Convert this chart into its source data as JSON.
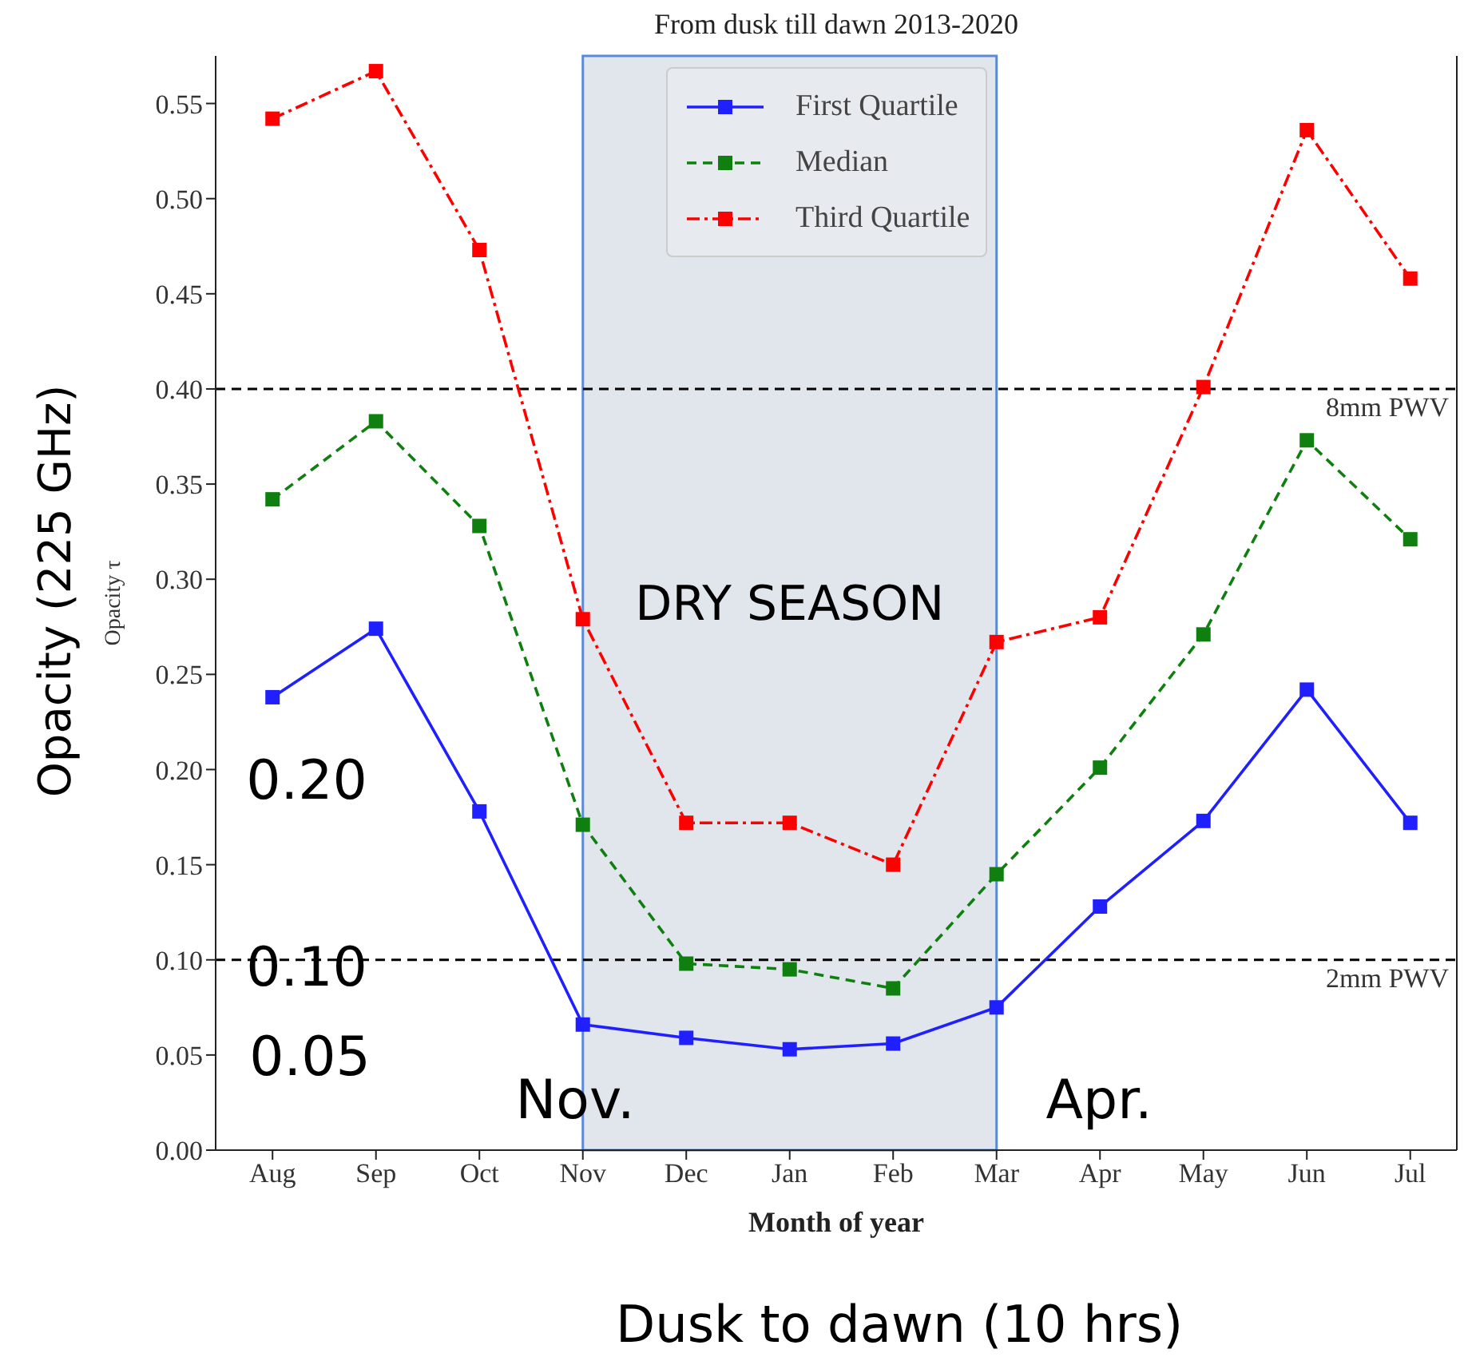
{
  "chart_data": {
    "type": "line",
    "title": "From dusk till dawn 2013-2020",
    "xlabel": "Month of year",
    "ylabel": "Opacity τ",
    "categories": [
      "Aug",
      "Sep",
      "Oct",
      "Nov",
      "Dec",
      "Jan",
      "Feb",
      "Mar",
      "Apr",
      "May",
      "Jun",
      "Jul"
    ],
    "series": [
      {
        "name": "First Quartile",
        "color": "#1f1fff",
        "line_style": "solid",
        "values": [
          0.238,
          0.274,
          0.178,
          0.066,
          0.059,
          0.053,
          0.056,
          0.075,
          0.128,
          0.173,
          0.242,
          0.172
        ]
      },
      {
        "name": "Median",
        "color": "#0f800f",
        "line_style": "dashed",
        "values": [
          0.342,
          0.383,
          0.328,
          0.171,
          0.098,
          0.095,
          0.085,
          0.145,
          0.201,
          0.271,
          0.373,
          0.321
        ]
      },
      {
        "name": "Third Quartile",
        "color": "#ff0000",
        "line_style": "dashdot",
        "values": [
          0.542,
          0.567,
          0.473,
          0.279,
          0.172,
          0.172,
          0.15,
          0.267,
          0.28,
          0.401,
          0.536,
          0.458
        ]
      }
    ],
    "ylim": [
      0,
      0.575
    ],
    "yticks": [
      {
        "value": 0,
        "label": "0.00"
      },
      0.05,
      {
        "value": 0.1,
        "label": "0.10"
      },
      0.15,
      {
        "value": 0.2,
        "label": "0.20"
      },
      0.25,
      {
        "value": 0.3,
        "label": "0.30"
      },
      0.35,
      {
        "value": 0.4,
        "label": "0.40"
      },
      0.45,
      {
        "value": 0.5,
        "label": "0.50"
      },
      0.55
    ],
    "ref_lines": [
      {
        "axis": "y",
        "value": 0.4,
        "label": "8mm PWV",
        "color": "#000000",
        "line_style": "dashed"
      },
      {
        "axis": "y",
        "value": 0.1,
        "label": "2mm PWV",
        "color": "#000000",
        "line_style": "dashed"
      }
    ],
    "bands": [
      {
        "axis": "x",
        "from": "Nov",
        "to": "Mar",
        "label": "DRY SEASON",
        "color": "#e1e5ec"
      }
    ],
    "annotations": [
      "Opacity (225 GHz)",
      "0.20",
      "0.10",
      "0.05",
      "Nov.",
      "Apr.",
      "Dusk to dawn (10 hrs)"
    ],
    "marker": "square",
    "legend": "top",
    "grid": false
  }
}
